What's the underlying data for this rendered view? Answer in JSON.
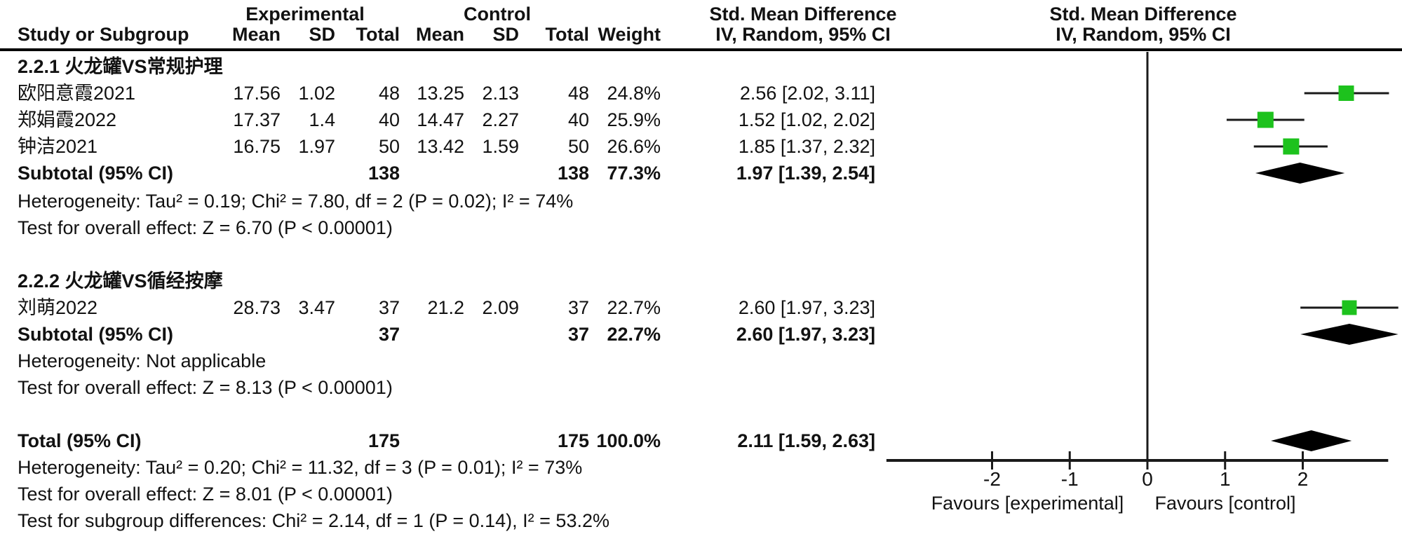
{
  "table": {
    "group_header_experimental": "Experimental",
    "group_header_control": "Control",
    "effect_header_left": "Std. Mean Difference",
    "effect_header_right": "Std. Mean Difference",
    "col_study": "Study or Subgroup",
    "col_mean_exp": "Mean",
    "col_sd_exp": "SD",
    "col_total_exp": "Total",
    "col_mean_ctl": "Mean",
    "col_sd_ctl": "SD",
    "col_total_ctl": "Total",
    "col_weight": "Weight",
    "col_ci_left": "IV, Random, 95% CI",
    "col_ci_right": "IV, Random, 95% CI"
  },
  "chart_data": {
    "type": "forest",
    "effect_measure": "Std. Mean Difference",
    "method": "IV, Random, 95% CI",
    "x_axis": {
      "ticks": [
        "-2",
        "-1",
        "0",
        "1",
        "2"
      ],
      "tick_values": [
        -2,
        -1,
        0,
        1,
        2
      ],
      "range": [
        -3.36,
        3.1
      ],
      "left_label": "Favours [experimental]",
      "right_label": "Favours [control]"
    },
    "marker_color": "#1dc21d",
    "line_color": "#1a1a1a",
    "subgroups": [
      {
        "label": "2.2.1 火龙罐VS常规护理",
        "studies": [
          {
            "name": "欧阳意霞2021",
            "mean_e": "17.56",
            "sd_e": "1.02",
            "n_e": "48",
            "mean_c": "13.25",
            "sd_c": "2.13",
            "n_c": "48",
            "weight": "24.8%",
            "weight_val": 24.8,
            "ci_text": "2.56 [2.02, 3.11]",
            "est": 2.56,
            "lo": 2.02,
            "hi": 3.11
          },
          {
            "name": "郑娟霞2022",
            "mean_e": "17.37",
            "sd_e": "1.4",
            "n_e": "40",
            "mean_c": "14.47",
            "sd_c": "2.27",
            "n_c": "40",
            "weight": "25.9%",
            "weight_val": 25.9,
            "ci_text": "1.52 [1.02, 2.02]",
            "est": 1.52,
            "lo": 1.02,
            "hi": 2.02
          },
          {
            "name": "钟洁2021",
            "mean_e": "16.75",
            "sd_e": "1.97",
            "n_e": "50",
            "mean_c": "13.42",
            "sd_c": "1.59",
            "n_c": "50",
            "weight": "26.6%",
            "weight_val": 26.6,
            "ci_text": "1.85 [1.37, 2.32]",
            "est": 1.85,
            "lo": 1.37,
            "hi": 2.32
          }
        ],
        "subtotal": {
          "label": "Subtotal (95% CI)",
          "n_e": "138",
          "n_c": "138",
          "weight": "77.3%",
          "ci_text": "1.97 [1.39, 2.54]",
          "est": 1.97,
          "lo": 1.39,
          "hi": 2.54
        },
        "heterogeneity": "Heterogeneity: Tau² = 0.19; Chi² = 7.80, df = 2 (P = 0.02); I² = 74%",
        "overall_effect": "Test for overall effect: Z = 6.70 (P < 0.00001)"
      },
      {
        "label": "2.2.2 火龙罐VS循经按摩",
        "studies": [
          {
            "name": "刘萌2022",
            "mean_e": "28.73",
            "sd_e": "3.47",
            "n_e": "37",
            "mean_c": "21.2",
            "sd_c": "2.09",
            "n_c": "37",
            "weight": "22.7%",
            "weight_val": 22.7,
            "ci_text": "2.60 [1.97, 3.23]",
            "est": 2.6,
            "lo": 1.97,
            "hi": 3.23
          }
        ],
        "subtotal": {
          "label": "Subtotal (95% CI)",
          "n_e": "37",
          "n_c": "37",
          "weight": "22.7%",
          "ci_text": "2.60 [1.97, 3.23]",
          "est": 2.6,
          "lo": 1.97,
          "hi": 3.23
        },
        "heterogeneity": "Heterogeneity: Not applicable",
        "overall_effect": "Test for overall effect: Z = 8.13 (P < 0.00001)"
      }
    ],
    "total": {
      "label": "Total (95% CI)",
      "n_e": "175",
      "n_c": "175",
      "weight": "100.0%",
      "ci_text": "2.11 [1.59, 2.63]",
      "est": 2.11,
      "lo": 1.59,
      "hi": 2.63,
      "heterogeneity": "Heterogeneity: Tau² = 0.20; Chi² = 11.32, df = 3 (P = 0.01); I² = 73%",
      "overall_effect": "Test for overall effect: Z = 8.01 (P < 0.00001)",
      "subgroup_differences": "Test for subgroup differences: Chi² = 2.14, df = 1 (P = 0.14), I² = 53.2%"
    }
  }
}
